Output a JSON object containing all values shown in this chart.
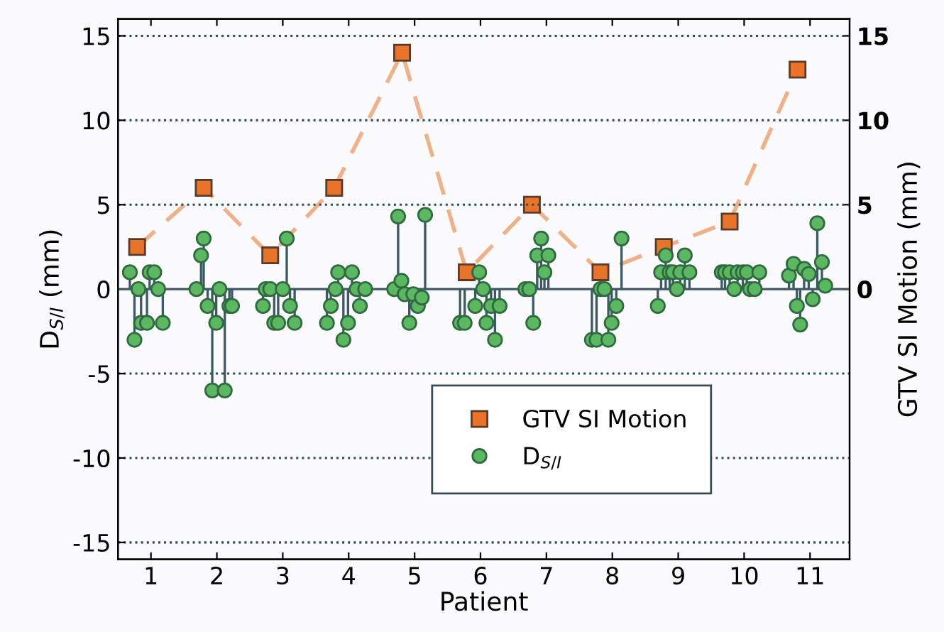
{
  "chart_data": {
    "type": "lollipop",
    "xlabel": "Patient",
    "ylabel": "D$_{S/I}$ (mm)",
    "y2label": "GTV SI Motion (mm)",
    "xlim": [
      0.5,
      11.6
    ],
    "xticks": [
      1,
      2,
      3,
      4,
      5,
      6,
      7,
      8,
      9,
      10,
      11
    ],
    "ylim": [
      -16,
      16
    ],
    "yticks": [
      -15,
      -10,
      -5,
      0,
      5,
      10,
      15
    ],
    "y2lim": [
      -16,
      16
    ],
    "y2ticks": [
      0,
      5,
      10,
      15
    ],
    "grid": "y",
    "legend": "bottom",
    "ref_lines": [
      {
        "axis": "y",
        "value": 0,
        "color": "#3d5866"
      }
    ],
    "series": [
      {
        "name": "GTV SI Motion",
        "type": "line",
        "axis": "y2",
        "color": "#e8742a",
        "marker": "square",
        "line_style": "dashed",
        "x": [
          0.79,
          1.8,
          2.81,
          3.78,
          4.81,
          5.79,
          6.78,
          7.82,
          8.78,
          9.78,
          10.81
        ],
        "values": [
          2.5,
          6,
          2,
          6,
          14,
          1,
          5,
          1,
          2.5,
          4,
          13
        ]
      },
      {
        "name": "D$_{S/I}$",
        "color": "#5cb860",
        "marker": "circle",
        "x": [
          0.68,
          0.75,
          0.81,
          0.85,
          0.94,
          0.98,
          1.05,
          1.11,
          1.18,
          1.69,
          1.76,
          1.8,
          1.86,
          1.93,
          1.99,
          2.04,
          2.12,
          2.19,
          2.23,
          2.7,
          2.74,
          2.81,
          2.87,
          2.93,
          3.0,
          3.06,
          3.11,
          3.18,
          3.67,
          3.73,
          3.8,
          3.84,
          3.92,
          3.99,
          4.05,
          4.12,
          4.17,
          4.25,
          4.69,
          4.75,
          4.8,
          4.85,
          4.92,
          4.98,
          5.05,
          5.11,
          5.16,
          5.69,
          5.76,
          5.92,
          5.98,
          6.04,
          6.09,
          6.16,
          6.22,
          6.29,
          6.68,
          6.74,
          6.8,
          6.86,
          6.92,
          6.97,
          7.03,
          7.69,
          7.76,
          7.82,
          7.88,
          7.94,
          7.99,
          8.06,
          8.14,
          8.69,
          8.74,
          8.81,
          8.87,
          8.92,
          8.98,
          9.03,
          9.1,
          9.17,
          9.66,
          9.71,
          9.78,
          9.85,
          9.9,
          9.98,
          10.04,
          10.09,
          10.16,
          10.23,
          10.68,
          10.75,
          10.8,
          10.85,
          10.91,
          10.98,
          11.04,
          11.11,
          11.18,
          11.23
        ],
        "values": [
          1,
          -3,
          0,
          -2,
          -2,
          1,
          1,
          0,
          -2,
          0,
          2,
          3,
          -1,
          -6,
          -2,
          0,
          -6,
          -1,
          -1,
          -1,
          0,
          0,
          -2,
          -2,
          0,
          3,
          -1,
          -2,
          -2,
          -1,
          0,
          1,
          -3,
          -2,
          1,
          0,
          -1,
          0,
          0,
          4.3,
          0.5,
          -0.3,
          -2,
          -0.3,
          -1,
          -0.5,
          4.4,
          -2,
          -2,
          -1,
          1,
          0,
          -2,
          -1,
          -3,
          -1,
          0,
          0,
          -2,
          2,
          3,
          1,
          2,
          -3,
          -3,
          0,
          0,
          -3,
          -2,
          -1,
          3,
          -1,
          1,
          2,
          1,
          1,
          0,
          1,
          2,
          1,
          1,
          1,
          1,
          0,
          1,
          1,
          1,
          0,
          0,
          1,
          0.8,
          1.5,
          -1,
          -2.1,
          1.2,
          0.9,
          -0.6,
          3.9,
          1.6,
          0.2
        ]
      }
    ]
  }
}
